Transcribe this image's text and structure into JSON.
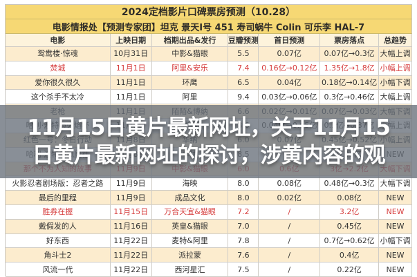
{
  "chart_data": {
    "type": "table",
    "title": "2024定档影片口碑票房预测（10.28）",
    "subtitle": "电影情报处【预测专家团】坦克 景天I号 451 寿司蜗牛 Colin 可乐李 HAL-7",
    "columns": [
      "电影",
      "上映日期",
      "档期出品&发行",
      "豆瓣预测",
      "首日预测",
      "票房落点",
      "总趋势"
    ],
    "rows": [
      {
        "name": "鸳鸯楼·惊魂",
        "date": "10月31日",
        "studio": "中影&猫眼",
        "douban": "5.5",
        "day1": "0.07亿",
        "box": "0.07亿→0.3亿",
        "trend": "大幅上调",
        "red": false
      },
      {
        "name": "焚城",
        "date": "11月1日",
        "studio": "阿里&安乐",
        "douban": "7.4",
        "day1": "0.16亿→0.12亿",
        "box": "1.35亿→1.8亿",
        "trend": "小幅上调",
        "red": true
      },
      {
        "name": "爱你很久很久",
        "date": "11月1日",
        "studio": "环鹰",
        "douban": "6.5",
        "day1": "0.04亿",
        "box": "0.18亿→0.14亿",
        "trend": "小幅下调",
        "red": false
      },
      {
        "name": "这个杀手不太冷",
        "date": "11月1日",
        "studio": "阿里",
        "douban": "9.4",
        "day1": "0.03亿→0.06亿",
        "box": "0.3亿→0.46亿",
        "trend": "大幅上调",
        "red": false
      },
      {
        "name": "老枪",
        "date": "11月1日",
        "studio": "陌陌&博纳",
        "douban": "6.6",
        "day1": "0.02亿→0.01亿",
        "box": "0.07亿→0.03亿",
        "trend": "大幅下调",
        "red": false
      },
      {
        "name": "哈利·波特与火焰杯",
        "date": "11月1日",
        "studio": "华纳",
        "douban": "8.6",
        "day1": "0.04亿→0.05亿",
        "box": "0.3亿→0.37亿",
        "trend": "小幅上调",
        "red": false
      },
      {
        "name": "红色一号：冬日行动",
        "date": "11月8日",
        "studio": "华纳",
        "douban": "6.0",
        "day1": "0.07亿",
        "box": "0.45亿→0.52亿",
        "trend": "小幅上调",
        "red": false
      },
      {
        "name": "哈利·波特与凤凰社",
        "date": "11月8日",
        "studio": "华纳",
        "douban": "8.5",
        "day1": "/",
        "box": "0.35亿",
        "trend": "NEW",
        "red": false
      },
      {
        "name": "那个不为人知的故事",
        "date": "11月9日",
        "studio": "中影&猫眼",
        "douban": "6.0",
        "day1": "0.6亿",
        "box": "3亿→2.2亿",
        "trend": "大幅下调",
        "red": true
      },
      {
        "name": "火影忍者剧场版：忍者之路",
        "date": "11月9日",
        "studio": "海映",
        "douban": "8.0",
        "day1": "0.08亿",
        "box": "0.48亿→0.3亿",
        "trend": "大幅下调",
        "red": false
      },
      {
        "name": "最后的里程",
        "date": "11月9日",
        "studio": "成品文化",
        "douban": "8.0",
        "day1": "0.02亿",
        "box": "0.08亿",
        "trend": "NEW",
        "red": false
      },
      {
        "name": "胜券在握",
        "date": "11月15日",
        "studio": "万合天宜&猫眼",
        "douban": "7.2",
        "day1": "/",
        "box": "3.2亿",
        "trend": "NEW",
        "red": true
      },
      {
        "name": "戴假发的人",
        "date": "11月16日",
        "studio": "英皇&猫眼",
        "douban": "7.0",
        "day1": "/",
        "box": "0.45亿",
        "trend": "NEW",
        "red": false
      },
      {
        "name": "好东西",
        "date": "11月22日",
        "studio": "麦特&阿里",
        "douban": "7.8",
        "day1": "/",
        "box": "0.7亿→0.62亿",
        "trend": "小幅下调",
        "red": false
      },
      {
        "name": "角斗士2",
        "date": "11月22日",
        "studio": "派拉蒙",
        "douban": "7.6",
        "day1": "/",
        "box": "0.4亿",
        "trend": "NEW",
        "red": false
      },
      {
        "name": "风流一代",
        "date": "11月22日",
        "studio": "西河星汇",
        "douban": "7.5",
        "day1": "/",
        "box": "0.22亿",
        "trend": "NEW",
        "red": false
      }
    ]
  },
  "overlay": {
    "line1": "11月15日黄片最新网址，关于11月15",
    "line2": "日黄片最新网址的探讨，涉黄内容的观"
  },
  "colors": {
    "title_band": "#f6d874",
    "cream_row": "#fcecce",
    "header_row": "#fdf3dc",
    "red_text": "#d63c3c",
    "overlay_bg": "rgba(104,112,122,0.78)",
    "grid_border": "#cfccc6"
  }
}
